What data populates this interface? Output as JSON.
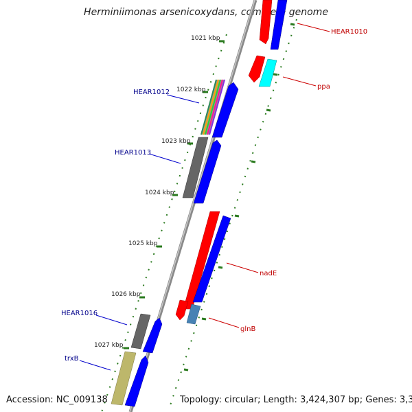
{
  "title": "Herminiimonas arsenicoxydans, complete genome",
  "footer": {
    "accession": "Accession: NC_009138",
    "summary": "Topology: circular; Length: 3,424,307 bp; Genes: 3,353"
  },
  "ticks": [
    "1021 kbp",
    "1022 kbp",
    "1023 kbp",
    "1024 kbp",
    "1025 kbp",
    "1026 kbp",
    "1027 kbp"
  ],
  "gene_labels": {
    "hear1010": "HEAR1010",
    "ppa": "ppa",
    "hear1012": "HEAR1012",
    "hear1013": "HEAR1013",
    "nadE": "nadE",
    "hear1016": "HEAR1016",
    "glnB": "glnB",
    "trxB": "trxB"
  },
  "colors": {
    "backbone": "#888888",
    "tick": "#2a7a1e",
    "label_blue": "#00008b",
    "label_red": "#c00000",
    "blue_feature": "#0000ff",
    "red_feature": "#ff0000",
    "gray_feature": "#666666",
    "cyan_feature": "#00ffff",
    "steel_feature": "#4682b4",
    "khaki_feature": "#bdb76b"
  }
}
